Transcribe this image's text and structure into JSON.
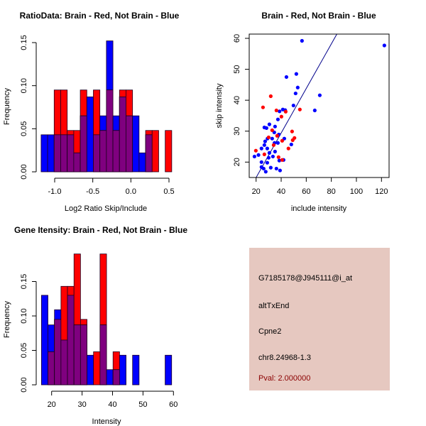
{
  "colors": {
    "red": "#ff0000",
    "blue": "#0000ff",
    "overlap": "#7f007f",
    "panel": "#e6c8c0",
    "pval": "#8b0000",
    "line": "#00008b"
  },
  "chart_data": [
    {
      "type": "bar",
      "subtype": "overlaid-histogram",
      "title": "RatioData: Brain - Red, Not Brain - Blue",
      "xlabel": "Log2 Ratio Skip/Include",
      "ylabel": "Frequency",
      "xlim": [
        -1.2,
        0.55
      ],
      "ylim": [
        0,
        0.15
      ],
      "xticks": [
        -1.0,
        -0.5,
        0.0,
        0.5
      ],
      "xtick_labels": [
        "-1.0",
        "-0.5",
        "0.0",
        "0.5"
      ],
      "yticks": [
        0,
        0.05,
        0.1,
        0.15
      ],
      "ytick_labels": [
        "0.00",
        "0.05",
        "0.10",
        "0.15"
      ],
      "bin_start": -1.178,
      "bin_width": 0.0857,
      "series": [
        {
          "name": "Not Brain",
          "color": "blue",
          "values": [
            0.043,
            0.043,
            0.043,
            0.043,
            0.043,
            0.022,
            0.065,
            0.087,
            0.043,
            0.065,
            0.152,
            0.065,
            0.087,
            0.065,
            0.065,
            0.022,
            0.043,
            0,
            0,
            0
          ]
        },
        {
          "name": "Brain",
          "color": "red",
          "values": [
            0,
            0,
            0.095,
            0.095,
            0.048,
            0.048,
            0.095,
            0,
            0.095,
            0.048,
            0.095,
            0.048,
            0.095,
            0.095,
            0,
            0,
            0.048,
            0.048,
            0,
            0.048
          ]
        }
      ]
    },
    {
      "type": "scatter",
      "title": "Brain - Red, Not Brain - Blue",
      "xlabel": "include intensity",
      "ylabel": "skip intensity",
      "xlim": [
        15,
        125
      ],
      "ylim": [
        15,
        61
      ],
      "xticks": [
        20,
        40,
        60,
        80,
        100,
        120
      ],
      "xtick_labels": [
        "20",
        "40",
        "60",
        "80",
        "100",
        "120"
      ],
      "yticks": [
        20,
        30,
        40,
        50,
        60
      ],
      "ytick_labels": [
        "20",
        "30",
        "40",
        "50",
        "60"
      ],
      "fit_line": {
        "intercept": 0.6,
        "slope": 0.72
      },
      "series": [
        {
          "name": "Not Brain",
          "color": "blue",
          "points": [
            [
              56.6,
              59.2
            ],
            [
              122.3,
              57.7
            ],
            [
              44.2,
              47.5
            ],
            [
              52.1,
              48.5
            ],
            [
              53.2,
              44.1
            ],
            [
              51.5,
              42.2
            ],
            [
              70.8,
              41.6
            ],
            [
              49.8,
              38.3
            ],
            [
              41.3,
              37.0
            ],
            [
              43.2,
              36.8
            ],
            [
              38.7,
              36.4
            ],
            [
              66.8,
              36.7
            ],
            [
              37.4,
              33.8
            ],
            [
              30.6,
              32.2
            ],
            [
              26.6,
              31.2
            ],
            [
              28.3,
              31.0
            ],
            [
              35.1,
              31.5
            ],
            [
              34.5,
              29.6
            ],
            [
              38.1,
              28.9
            ],
            [
              29.1,
              27.6
            ],
            [
              32.8,
              27.6
            ],
            [
              42.5,
              27.6
            ],
            [
              27.2,
              26.7
            ],
            [
              34.7,
              26.2
            ],
            [
              37.4,
              26.2
            ],
            [
              26.6,
              25.5
            ],
            [
              48.1,
              25.7
            ],
            [
              24.3,
              24.4
            ],
            [
              28.9,
              24.4
            ],
            [
              35.1,
              23.4
            ],
            [
              30.6,
              23.0
            ],
            [
              18.7,
              21.8
            ],
            [
              21.9,
              22.3
            ],
            [
              33.4,
              21.8
            ],
            [
              30.0,
              21.4
            ],
            [
              24.3,
              20.0
            ],
            [
              28.9,
              19.8
            ],
            [
              38.5,
              20.5
            ],
            [
              41.9,
              20.7
            ],
            [
              24.3,
              18.4
            ],
            [
              26.0,
              17.9
            ],
            [
              31.7,
              18.2
            ],
            [
              36.2,
              17.9
            ],
            [
              39.1,
              17.3
            ],
            [
              27.7,
              16.9
            ]
          ]
        },
        {
          "name": "Brain",
          "color": "red",
          "points": [
            [
              31.7,
              41.3
            ],
            [
              25.5,
              37.7
            ],
            [
              36.2,
              36.7
            ],
            [
              43.6,
              36.3
            ],
            [
              54.9,
              37.0
            ],
            [
              40.2,
              34.7
            ],
            [
              32.8,
              30.3
            ],
            [
              48.7,
              29.9
            ],
            [
              36.8,
              28.5
            ],
            [
              30.0,
              28.0
            ],
            [
              50.6,
              27.8
            ],
            [
              49.2,
              27.1
            ],
            [
              40.8,
              26.9
            ],
            [
              34.0,
              25.5
            ],
            [
              45.8,
              24.4
            ],
            [
              19.8,
              23.7
            ],
            [
              26.6,
              22.5
            ],
            [
              37.9,
              21.6
            ],
            [
              40.8,
              20.7
            ]
          ]
        }
      ]
    },
    {
      "type": "bar",
      "subtype": "overlaid-histogram",
      "title": "Gene Itensity: Brain - Red, Not Brain - Blue",
      "xlabel": "Intensity",
      "ylabel": "Frequency",
      "xlim": [
        16,
        60
      ],
      "ylim": [
        0,
        0.19
      ],
      "xticks": [
        20,
        30,
        40,
        50,
        60
      ],
      "xtick_labels": [
        "20",
        "30",
        "40",
        "50",
        "60"
      ],
      "yticks": [
        0,
        0.05,
        0.1,
        0.15
      ],
      "ytick_labels": [
        "0.00",
        "0.05",
        "0.10",
        "0.15"
      ],
      "bin_start": 16.66,
      "bin_width": 2.137,
      "series": [
        {
          "name": "Not Brain",
          "color": "blue",
          "values": [
            0.13,
            0.087,
            0.109,
            0.065,
            0.13,
            0.087,
            0.087,
            0.043,
            0,
            0.087,
            0.022,
            0.022,
            0.043,
            0,
            0.043,
            0,
            0,
            0,
            0,
            0.043
          ]
        },
        {
          "name": "Brain",
          "color": "red",
          "values": [
            0,
            0.048,
            0.095,
            0.143,
            0.143,
            0.19,
            0.095,
            0,
            0.048,
            0.19,
            0,
            0.048,
            0,
            0,
            0,
            0,
            0,
            0,
            0,
            0
          ]
        }
      ]
    }
  ],
  "info_panel": {
    "probe_id": "G7185178@J945111@i_at",
    "event_type": "altTxEnd",
    "gene": "Cpne2",
    "location": "chr8.24968-1.3",
    "pval": "Pval: 2.000000"
  }
}
